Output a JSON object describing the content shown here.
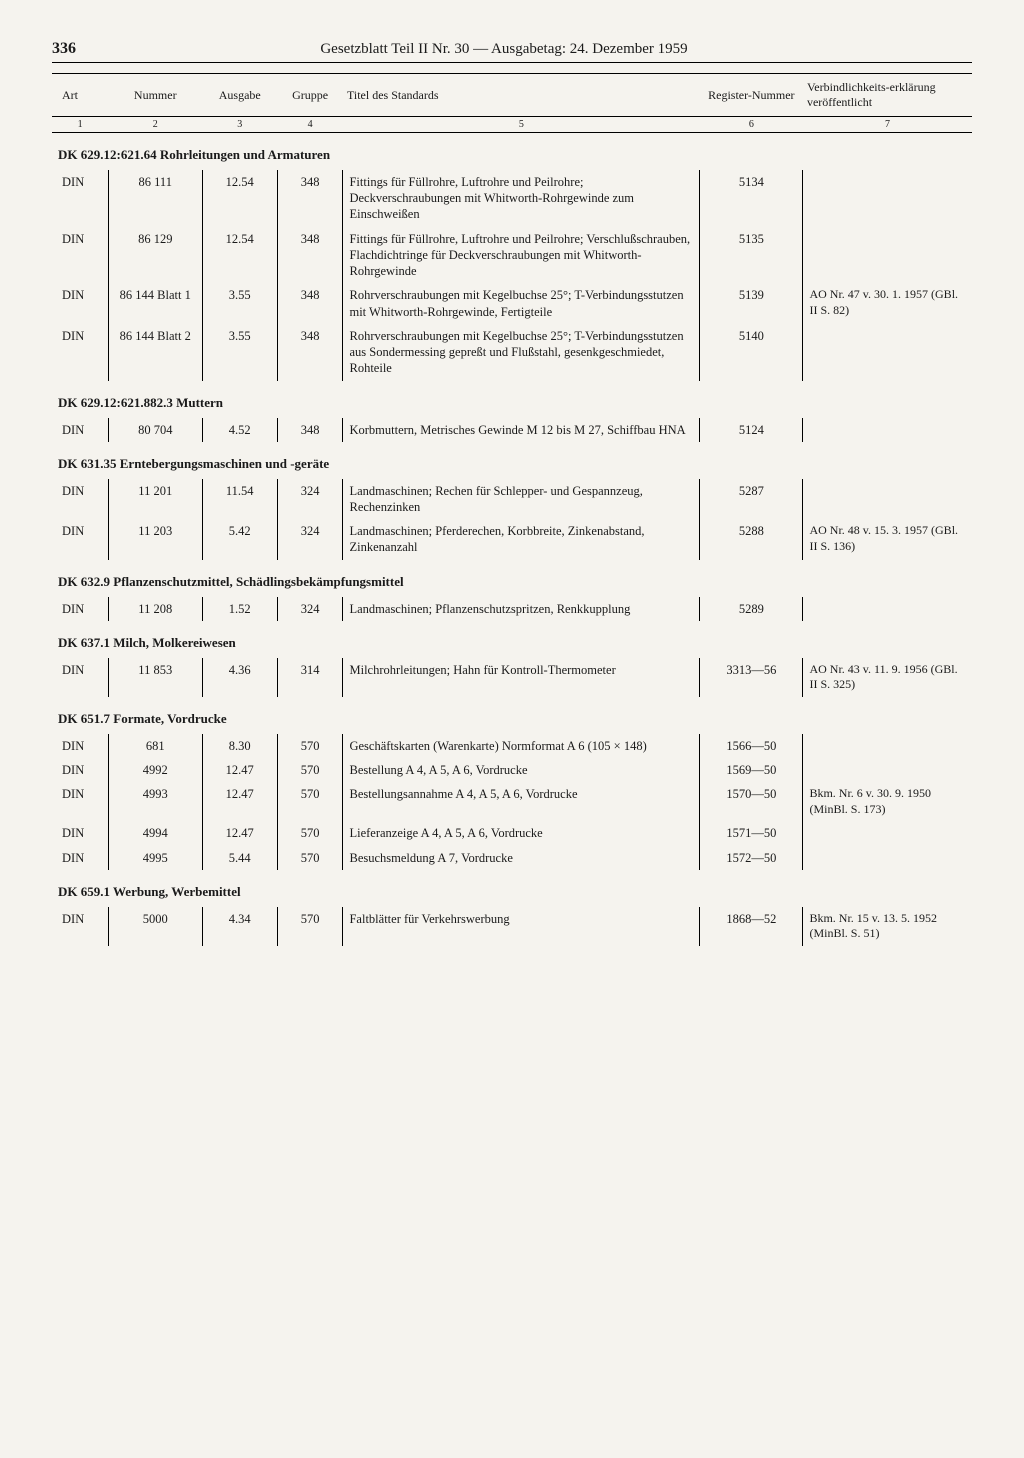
{
  "pageNumber": "336",
  "headerTitle": "Gesetzblatt Teil II Nr. 30 — Ausgabetag: 24. Dezember 1959",
  "columns": {
    "art": "Art",
    "nummer": "Nummer",
    "ausgabe": "Ausgabe",
    "gruppe": "Gruppe",
    "titel": "Titel des Standards",
    "register": "Register-Nummer",
    "verbind": "Verbindlichkeits-erklärung veröffentlicht"
  },
  "colnums": [
    "1",
    "2",
    "3",
    "4",
    "5",
    "6",
    "7"
  ],
  "sections": [
    {
      "heading": "DK 629.12:621.64 Rohrleitungen und Armaturen",
      "rows": [
        {
          "art": "DIN",
          "num": "86 111",
          "ausg": "12.54",
          "grp": "348",
          "titel": "Fittings für Füllrohre, Luftrohre und Peilrohre; Deckverschraubungen mit Whitworth-Rohrgewinde zum Einschweißen",
          "reg": "5134",
          "verb": ""
        },
        {
          "art": "DIN",
          "num": "86 129",
          "ausg": "12.54",
          "grp": "348",
          "titel": "Fittings für Füllrohre, Luftrohre und Peilrohre; Verschlußschrauben, Flachdichtringe für Deckverschraubungen mit Whitworth-Rohrgewinde",
          "reg": "5135",
          "verb": ""
        },
        {
          "art": "DIN",
          "num": "86 144 Blatt 1",
          "ausg": "3.55",
          "grp": "348",
          "titel": "Rohrverschraubungen mit Kegelbuchse 25°; T-Verbindungsstutzen mit Whitworth-Rohrgewinde, Fertigteile",
          "reg": "5139",
          "verb": "AO Nr. 47 v. 30. 1. 1957 (GBl. II S. 82)"
        },
        {
          "art": "DIN",
          "num": "86 144 Blatt 2",
          "ausg": "3.55",
          "grp": "348",
          "titel": "Rohrverschraubungen mit Kegelbuchse 25°; T-Verbindungsstutzen aus Sondermessing gepreßt und Flußstahl, gesenkgeschmiedet, Rohteile",
          "reg": "5140",
          "verb": ""
        }
      ]
    },
    {
      "heading": "DK 629.12:621.882.3 Muttern",
      "rows": [
        {
          "art": "DIN",
          "num": "80 704",
          "ausg": "4.52",
          "grp": "348",
          "titel": "Korbmuttern, Metrisches Gewinde M 12 bis M 27, Schiffbau HNA",
          "reg": "5124",
          "verb": ""
        }
      ]
    },
    {
      "heading": "DK 631.35 Erntebergungsmaschinen und -geräte",
      "rows": [
        {
          "art": "DIN",
          "num": "11 201",
          "ausg": "11.54",
          "grp": "324",
          "titel": "Landmaschinen; Rechen für Schlepper- und Gespannzeug, Rechenzinken",
          "reg": "5287",
          "verb": ""
        },
        {
          "art": "DIN",
          "num": "11 203",
          "ausg": "5.42",
          "grp": "324",
          "titel": "Landmaschinen; Pferderechen, Korbbreite, Zinkenabstand, Zinkenanzahl",
          "reg": "5288",
          "verb": "AO Nr. 48 v. 15. 3. 1957 (GBl. II S. 136)"
        }
      ]
    },
    {
      "heading": "DK 632.9 Pflanzenschutzmittel, Schädlingsbekämpfungsmittel",
      "rows": [
        {
          "art": "DIN",
          "num": "11 208",
          "ausg": "1.52",
          "grp": "324",
          "titel": "Landmaschinen; Pflanzenschutzspritzen, Renkkupplung",
          "reg": "5289",
          "verb": ""
        }
      ]
    },
    {
      "heading": "DK 637.1 Milch, Molkereiwesen",
      "rows": [
        {
          "art": "DIN",
          "num": "11 853",
          "ausg": "4.36",
          "grp": "314",
          "titel": "Milchrohrleitungen; Hahn für Kontroll-Thermometer",
          "reg": "3313—56",
          "verb": "AO Nr. 43 v. 11. 9. 1956 (GBl. II S. 325)"
        }
      ]
    },
    {
      "heading": "DK 651.7 Formate, Vordrucke",
      "rows": [
        {
          "art": "DIN",
          "num": "681",
          "ausg": "8.30",
          "grp": "570",
          "titel": "Geschäftskarten (Warenkarte) Normformat A 6 (105 × 148)",
          "reg": "1566—50",
          "verb": ""
        },
        {
          "art": "DIN",
          "num": "4992",
          "ausg": "12.47",
          "grp": "570",
          "titel": "Bestellung A 4, A 5, A 6, Vordrucke",
          "reg": "1569—50",
          "verb": ""
        },
        {
          "art": "DIN",
          "num": "4993",
          "ausg": "12.47",
          "grp": "570",
          "titel": "Bestellungsannahme A 4, A 5, A 6, Vordrucke",
          "reg": "1570—50",
          "verb": "Bkm. Nr. 6 v. 30. 9. 1950 (MinBl. S. 173)"
        },
        {
          "art": "DIN",
          "num": "4994",
          "ausg": "12.47",
          "grp": "570",
          "titel": "Lieferanzeige A 4, A 5, A 6, Vordrucke",
          "reg": "1571—50",
          "verb": ""
        },
        {
          "art": "DIN",
          "num": "4995",
          "ausg": "5.44",
          "grp": "570",
          "titel": "Besuchsmeldung A 7, Vordrucke",
          "reg": "1572—50",
          "verb": ""
        }
      ]
    },
    {
      "heading": "DK 659.1 Werbung, Werbemittel",
      "rows": [
        {
          "art": "DIN",
          "num": "5000",
          "ausg": "4.34",
          "grp": "570",
          "titel": "Faltblätter für Verkehrswerbung",
          "reg": "1868—52",
          "verb": "Bkm. Nr. 15 v. 13. 5. 1952 (MinBl. S. 51)"
        }
      ]
    }
  ]
}
